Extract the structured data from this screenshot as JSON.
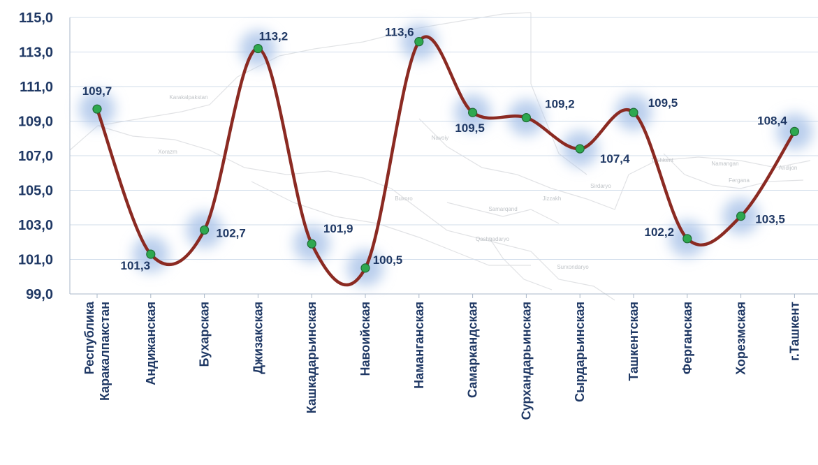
{
  "chart_data": {
    "type": "line",
    "categories": [
      [
        "Республика",
        "Каракалпакстан"
      ],
      [
        "Андижанская"
      ],
      [
        "Бухарская"
      ],
      [
        "Джизакская"
      ],
      [
        "Кашкадарьинская"
      ],
      [
        "Навоийская"
      ],
      [
        "Наманганская"
      ],
      [
        "Самаркандская"
      ],
      [
        "Сурхандарьинская"
      ],
      [
        "Сырдарьинская"
      ],
      [
        "Ташкентская"
      ],
      [
        "Ферганская"
      ],
      [
        "Хорезмская"
      ],
      [
        "г.Ташкент"
      ]
    ],
    "values": [
      109.7,
      101.3,
      102.7,
      113.2,
      101.9,
      100.5,
      113.6,
      109.5,
      109.2,
      107.4,
      109.5,
      102.2,
      103.5,
      108.4
    ],
    "data_labels": [
      "109,7",
      "101,3",
      "102,7",
      "113,2",
      "101,9",
      "100,5",
      "113,6",
      "109,5",
      "109,2",
      "107,4",
      "109,5",
      "102,2",
      "103,5",
      "108,4"
    ],
    "y_ticks": [
      "99,0",
      "101,0",
      "103,0",
      "105,0",
      "107,0",
      "109,0",
      "111,0",
      "113,0",
      "115,0"
    ],
    "ylim": [
      99,
      115
    ],
    "smooth": true,
    "grid": true,
    "colors": {
      "line": "#8b2a22",
      "marker": "#2ea84f",
      "text": "#1f3864",
      "grid": "#d0dcea",
      "glow": "#aec7ea"
    },
    "background_map_labels": [
      "Karakalpakstan",
      "Xorazm",
      "Navoiy",
      "Buxoro",
      "Samarqand",
      "Jizzakh",
      "Sirdaryo",
      "Qashqadaryo",
      "Surxondaryo",
      "Tashkent",
      "Namangan",
      "Andijon",
      "Fergana"
    ]
  }
}
